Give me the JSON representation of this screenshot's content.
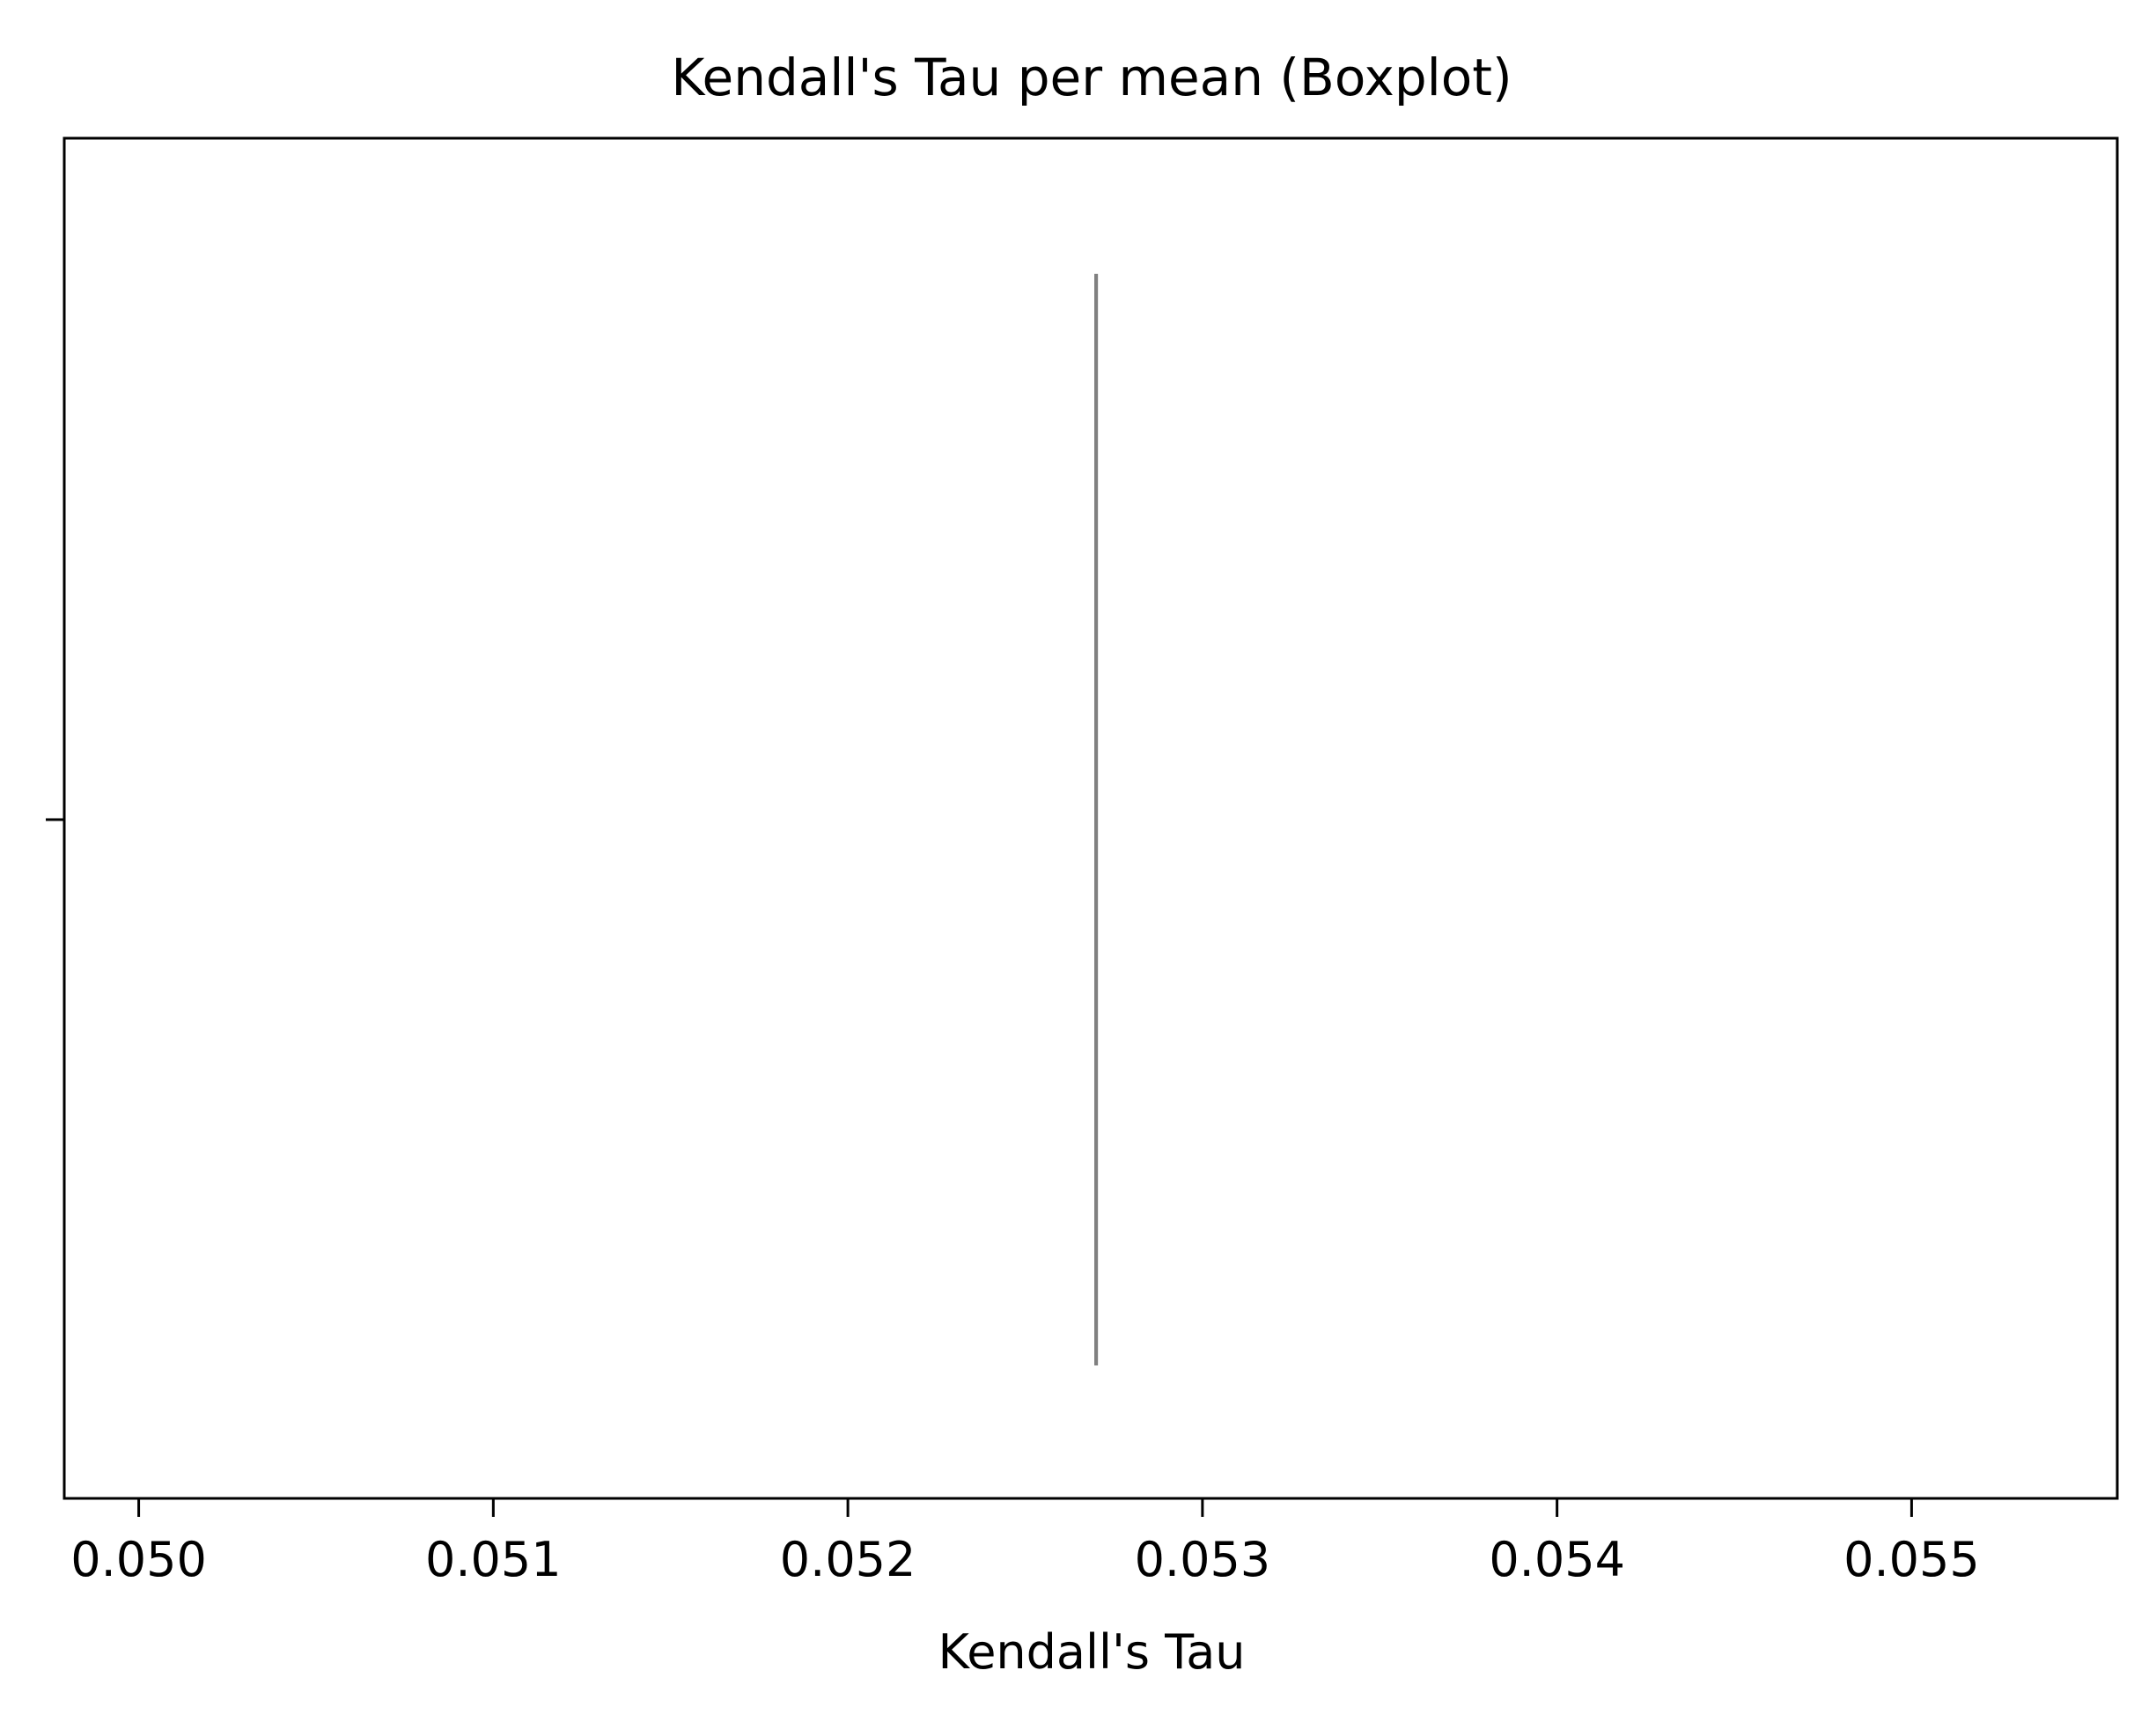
{
  "chart_data": {
    "type": "boxplot",
    "title": "Kendall's Tau per mean (Boxplot)",
    "xlabel": "Kendall's Tau",
    "ylabel": "",
    "xlim": [
      0.04979,
      0.05558
    ],
    "xticks": [
      0.05,
      0.051,
      0.052,
      0.053,
      0.054,
      0.055
    ],
    "xtick_labels": [
      "0.050",
      "0.051",
      "0.052",
      "0.053",
      "0.054",
      "0.055"
    ],
    "grid": false,
    "box": {
      "min": 0.0527,
      "q1": 0.0527,
      "median": 0.0527,
      "q3": 0.0527,
      "max": 0.0527,
      "color": "#808080"
    },
    "colors": {
      "axes": "#000000",
      "median_line": "#808080"
    }
  }
}
